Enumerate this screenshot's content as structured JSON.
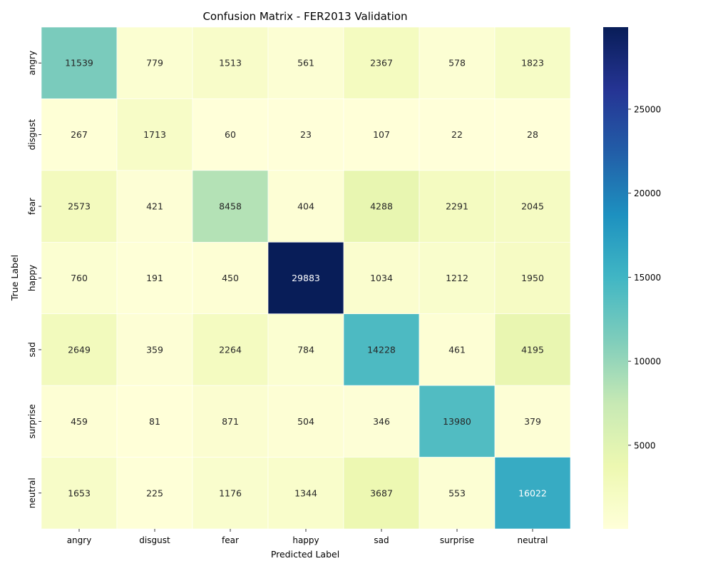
{
  "chart_data": {
    "type": "heatmap",
    "title": "Confusion Matrix - FER2013 Validation",
    "xlabel": "Predicted Label",
    "ylabel": "True Label",
    "x_categories": [
      "angry",
      "disgust",
      "fear",
      "happy",
      "sad",
      "surprise",
      "neutral"
    ],
    "y_categories": [
      "angry",
      "disgust",
      "fear",
      "happy",
      "sad",
      "surprise",
      "neutral"
    ],
    "values": [
      [
        11539,
        779,
        1513,
        561,
        2367,
        578,
        1823
      ],
      [
        267,
        1713,
        60,
        23,
        107,
        22,
        28
      ],
      [
        2573,
        421,
        8458,
        404,
        4288,
        2291,
        2045
      ],
      [
        760,
        191,
        450,
        29883,
        1034,
        1212,
        1950
      ],
      [
        2649,
        359,
        2264,
        784,
        14228,
        461,
        4195
      ],
      [
        459,
        81,
        871,
        504,
        346,
        13980,
        379
      ],
      [
        1653,
        225,
        1176,
        1344,
        3687,
        553,
        16022
      ]
    ],
    "colormap": "YlGnBu",
    "color_range": [
      22,
      29883
    ],
    "colorbar_ticks": [
      5000,
      10000,
      15000,
      20000,
      25000
    ],
    "colorbar_tick_labels": [
      "5000",
      "10000",
      "15000",
      "20000",
      "25000"
    ],
    "cell_border_color": "#ffffff",
    "dark_text_color": "#262626",
    "light_text_color": "#ffffff"
  }
}
